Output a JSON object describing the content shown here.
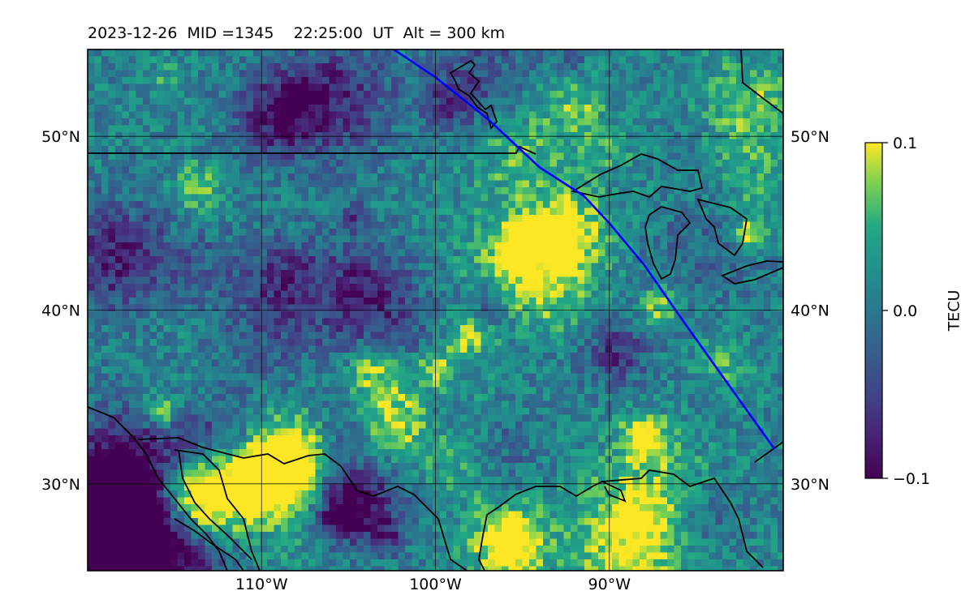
{
  "title": "2023-12-26  MID =1345    22:25:00  UT  Alt = 300 km",
  "map": {
    "lon_range": [
      -120,
      -80
    ],
    "lat_range": [
      25,
      55
    ],
    "lon_ticks": [
      {
        "value": -110,
        "label": "110°W"
      },
      {
        "value": -100,
        "label": "100°W"
      },
      {
        "value": -90,
        "label": "90°W"
      }
    ],
    "lat_ticks": [
      {
        "value": 30,
        "label": "30°N"
      },
      {
        "value": 40,
        "label": "40°N"
      },
      {
        "value": 50,
        "label": "50°N"
      }
    ],
    "gridlines": true,
    "field": "differential TEC (detrended)",
    "track_color": "#0000ff"
  },
  "colorbar": {
    "label": "TECU",
    "min": -0.1,
    "max": 0.1,
    "ticks": [
      {
        "value": 0.1,
        "label": "0.1"
      },
      {
        "value": 0.0,
        "label": "0.0"
      },
      {
        "value": -0.1,
        "label": "−0.1"
      }
    ],
    "colormap": "viridis"
  },
  "satellite_track": [
    [
      -102.4,
      55.0
    ],
    [
      -100.0,
      53.4
    ],
    [
      -97.0,
      51.0
    ],
    [
      -94.0,
      48.2
    ],
    [
      -91.5,
      46.6
    ],
    [
      -90.0,
      45.0
    ],
    [
      -88.0,
      42.6
    ],
    [
      -85.5,
      39.0
    ],
    [
      -83.0,
      35.5
    ],
    [
      -80.5,
      32.0
    ]
  ]
}
